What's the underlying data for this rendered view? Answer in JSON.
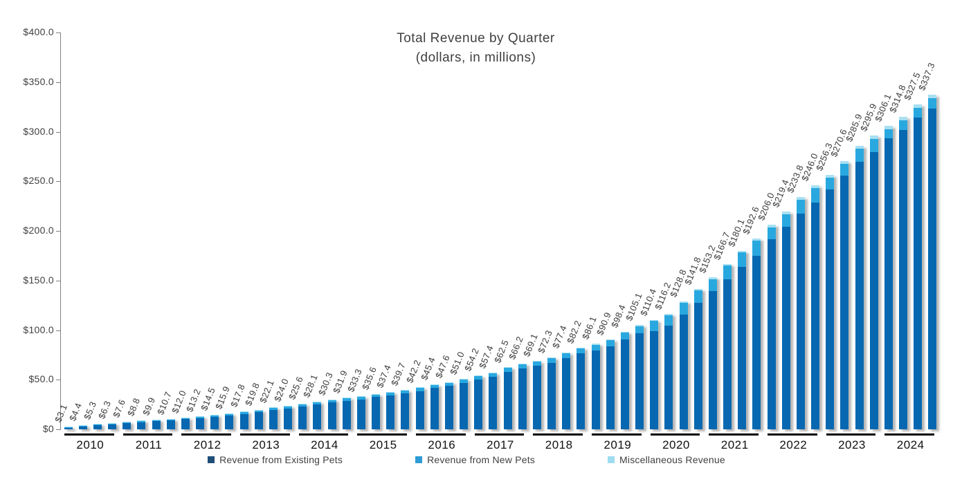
{
  "chart_data": {
    "type": "bar",
    "stacked": true,
    "title": "Total Revenue by Quarter",
    "subtitle": "(dollars, in millions)",
    "grid": false,
    "legend_position": "bottom",
    "ylim": [
      0,
      400
    ],
    "y_ticks": [
      {
        "label": "$0",
        "value": 0
      },
      {
        "label": "$50.0",
        "value": 50
      },
      {
        "label": "$100.0",
        "value": 100
      },
      {
        "label": "$150.0",
        "value": 150
      },
      {
        "label": "$200.0",
        "value": 200
      },
      {
        "label": "$250.0",
        "value": 250
      },
      {
        "label": "$300.0",
        "value": 300
      },
      {
        "label": "$350.0",
        "value": 350
      },
      {
        "label": "$400.0",
        "value": 400
      }
    ],
    "series": [
      {
        "name": "Revenue from Existing Pets",
        "color": "#0768B1",
        "swatch_color": "#1F4E79"
      },
      {
        "name": "Revenue from New Pets",
        "color": "#29A8E0",
        "swatch_color": "#2E9BD5"
      },
      {
        "name": "Miscellaneous Revenue",
        "color": "#A8E0F2",
        "swatch_color": "#9FDCF0"
      }
    ],
    "misc_share_est": 0.011,
    "years": [
      {
        "label": "2010",
        "totals": [
          3.1,
          4.4,
          5.3,
          6.3
        ],
        "total_labels": [
          "$3.1",
          "$4.4",
          "$5.3",
          "$6.3"
        ],
        "new_share_est": 0.1
      },
      {
        "label": "2011",
        "totals": [
          7.6,
          8.8,
          9.9,
          10.7
        ],
        "total_labels": [
          "$7.6",
          "$8.8",
          "$9.9",
          "$10.7"
        ],
        "new_share_est": 0.1
      },
      {
        "label": "2012",
        "totals": [
          12.0,
          13.2,
          14.5,
          15.9
        ],
        "total_labels": [
          "$12.0",
          "$13.2",
          "$14.5",
          "$15.9"
        ],
        "new_share_est": 0.1
      },
      {
        "label": "2013",
        "totals": [
          17.8,
          19.8,
          22.1,
          24.0
        ],
        "total_labels": [
          "$17.8",
          "$19.8",
          "$22.1",
          "$24.0"
        ],
        "new_share_est": 0.09
      },
      {
        "label": "2014",
        "totals": [
          25.6,
          28.1,
          30.3,
          31.9
        ],
        "total_labels": [
          "$25.6",
          "$28.1",
          "$30.3",
          "$31.9"
        ],
        "new_share_est": 0.08
      },
      {
        "label": "2015",
        "totals": [
          33.3,
          35.6,
          37.4,
          39.7
        ],
        "total_labels": [
          "$33.3",
          "$35.6",
          "$37.4",
          "$39.7"
        ],
        "new_share_est": 0.07
      },
      {
        "label": "2016",
        "totals": [
          42.2,
          45.4,
          47.6,
          51.0
        ],
        "total_labels": [
          "$42.2",
          "$45.4",
          "$47.6",
          "$51.0"
        ],
        "new_share_est": 0.07
      },
      {
        "label": "2017",
        "totals": [
          54.2,
          57.4,
          62.5,
          66.2
        ],
        "total_labels": [
          "$54.2",
          "$57.4",
          "$62.5",
          "$66.2"
        ],
        "new_share_est": 0.06
      },
      {
        "label": "2018",
        "totals": [
          69.1,
          72.3,
          77.4,
          82.2
        ],
        "total_labels": [
          "$69.1",
          "$72.3",
          "$77.4",
          "$82.2"
        ],
        "new_share_est": 0.06
      },
      {
        "label": "2019",
        "totals": [
          86.1,
          90.9,
          98.4,
          105.1
        ],
        "total_labels": [
          "$86.1",
          "$90.9",
          "$98.4",
          "$105.1"
        ],
        "new_share_est": 0.07
      },
      {
        "label": "2020",
        "totals": [
          110.4,
          116.2,
          128.8,
          141.8
        ],
        "total_labels": [
          "$110.4",
          "$116.2",
          "$128.8",
          "$141.8"
        ],
        "new_share_est": 0.09
      },
      {
        "label": "2021",
        "totals": [
          153.2,
          166.7,
          180.1,
          192.6
        ],
        "total_labels": [
          "$153.2",
          "$166.7",
          "$180.1",
          "$192.6"
        ],
        "new_share_est": 0.08
      },
      {
        "label": "2022",
        "totals": [
          206.0,
          219.4,
          233.8,
          246.0
        ],
        "total_labels": [
          "$206.0",
          "$219.4",
          "$233.8",
          "$246.0"
        ],
        "new_share_est": 0.06
      },
      {
        "label": "2023",
        "totals": [
          256.3,
          270.6,
          285.9,
          295.9
        ],
        "total_labels": [
          "$256.3",
          "$270.6",
          "$285.9",
          "$295.9"
        ],
        "new_share_est": 0.045
      },
      {
        "label": "2024",
        "totals": [
          306.1,
          314.8,
          327.5,
          337.3
        ],
        "total_labels": [
          "$306.1",
          "$314.8",
          "$327.5",
          "$337.3"
        ],
        "new_share_est": 0.03
      }
    ]
  }
}
